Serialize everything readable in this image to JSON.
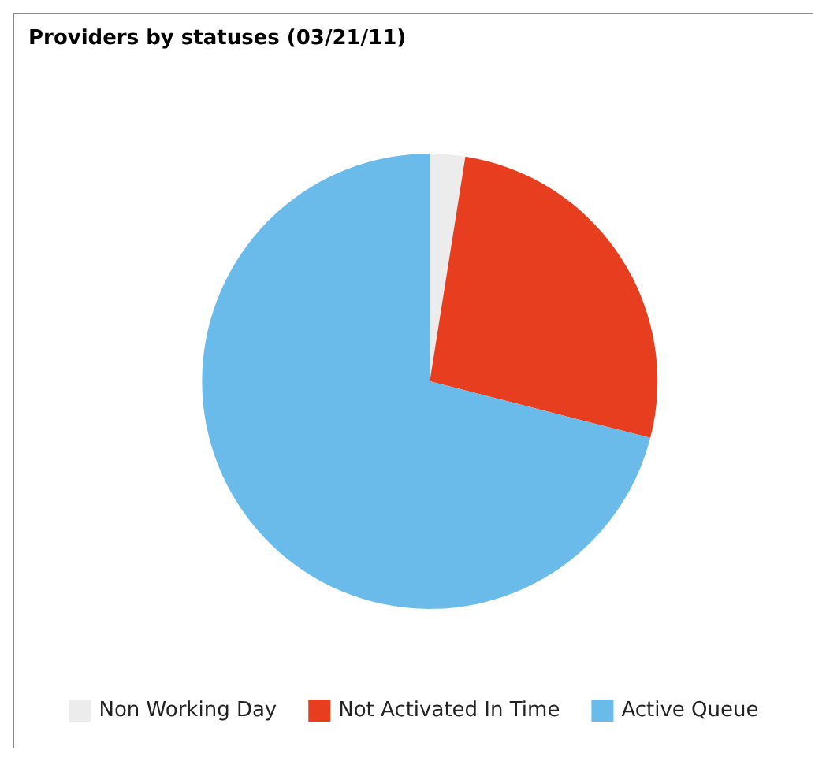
{
  "chart_data": {
    "type": "pie",
    "title": "Providers by statuses (03/21/11)",
    "categories": [
      "Non Working Day",
      "Not Activated In Time",
      "Active Queue"
    ],
    "values": [
      2.5,
      26.5,
      71
    ],
    "colors": [
      "#ececec",
      "#e63e1f",
      "#6bbbea"
    ],
    "legend": "bottom"
  }
}
